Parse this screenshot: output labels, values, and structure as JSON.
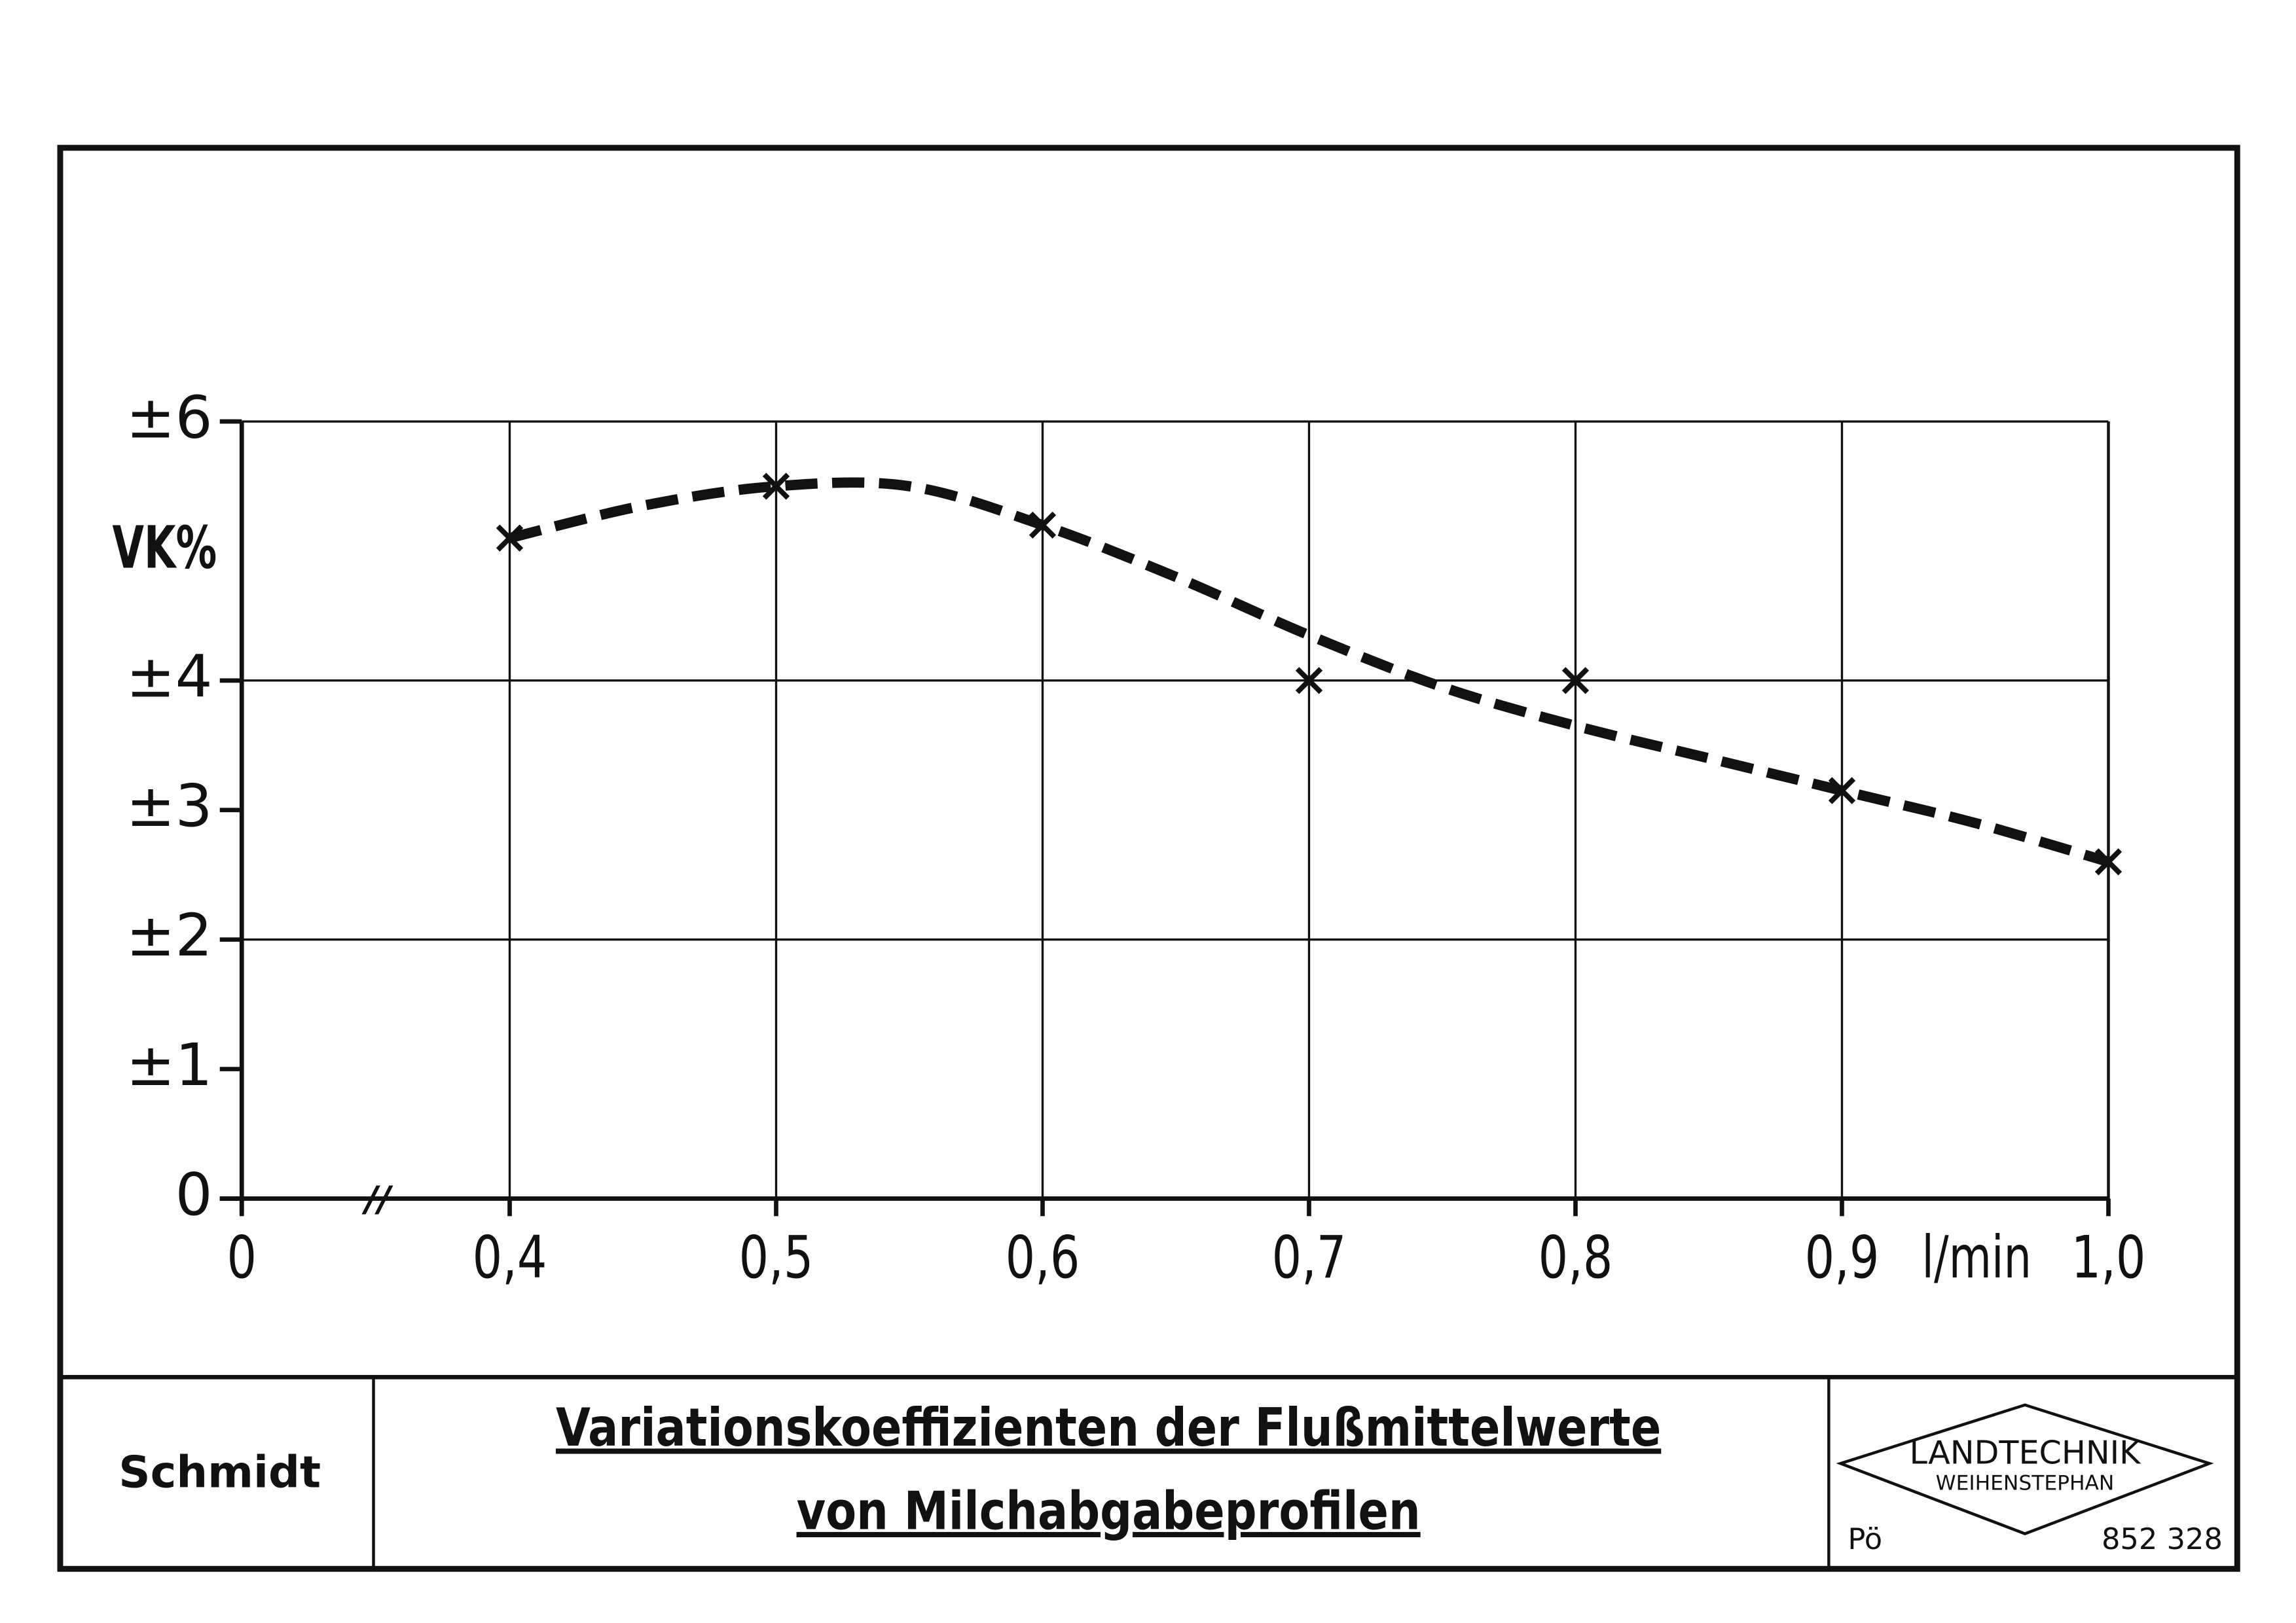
{
  "chart_data": {
    "type": "line",
    "y_axis_label": "VK%",
    "x_axis_label": "l/min",
    "x": [
      0.4,
      0.5,
      0.6,
      0.7,
      0.8,
      0.9,
      1.0
    ],
    "series": [
      {
        "color": "#111111",
        "marker": "x",
        "values": [
          5.1,
          5.5,
          5.2,
          4.0,
          4.0,
          3.15,
          2.6
        ]
      }
    ],
    "fit_curve": {
      "color": "#111111",
      "dashed": true,
      "x": [
        0.4,
        0.45,
        0.5,
        0.55,
        0.6,
        0.65,
        0.7,
        0.75,
        0.8,
        0.85,
        0.9,
        0.95,
        1.0
      ],
      "values": [
        5.1,
        5.35,
        5.5,
        5.5,
        5.2,
        4.8,
        4.35,
        3.95,
        3.65,
        3.4,
        3.15,
        2.9,
        2.6
      ]
    },
    "xlim": [
      0,
      1.0
    ],
    "ylim": [
      0,
      6
    ],
    "xticks": [
      0,
      {
        "value": 0.4,
        "label": "0,4"
      },
      {
        "value": 0.5,
        "label": "0,5"
      },
      {
        "value": 0.6,
        "label": "0,6"
      },
      {
        "value": 0.7,
        "label": "0,7"
      },
      {
        "value": 0.8,
        "label": "0,8"
      },
      {
        "value": 0.9,
        "label": "0,9"
      },
      {
        "value": 1.0,
        "label": "1,0"
      }
    ],
    "yticks": [
      0,
      {
        "value": 1,
        "label": "±1"
      },
      {
        "value": 2,
        "label": "±2"
      },
      {
        "value": 3,
        "label": "±3"
      },
      {
        "value": 4,
        "label": "±4"
      },
      {
        "value": 6,
        "label": "±6"
      }
    ],
    "grid": true
  },
  "title_block": {
    "author": "Schmidt",
    "title_lines": [
      "Variationskoeffizienten der Flußmittelwerte",
      "von Milchabgabeprofilen"
    ],
    "logo": [
      "LANDTECHNIK",
      "WEIHENSTEPHAN"
    ],
    "initials": "Pö",
    "number": "852 328"
  }
}
